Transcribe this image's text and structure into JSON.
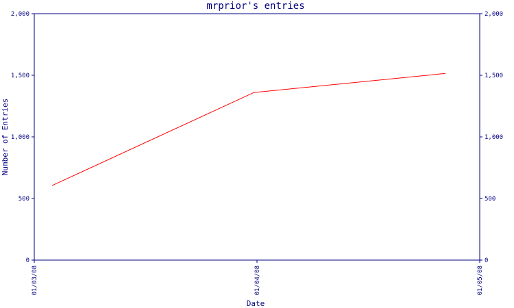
{
  "chart_data": {
    "type": "line",
    "title": "mrprior's entries",
    "xlabel": "Date",
    "ylabel": "Number of Entries",
    "x_ticks": [
      "01/03/08",
      "01/04/08",
      "01/05/08"
    ],
    "y_ticks": [
      "0",
      "500",
      "1,000",
      "1,500",
      "2,000"
    ],
    "ylim": [
      0,
      2000
    ],
    "xlim": [
      "01/03/08",
      "01/05/08"
    ],
    "series": [
      {
        "color": "#ff0000",
        "x": [
          "01/03/08 (approx. day 1)",
          "01/04/08",
          "01/05/08 (approx. 3 days before)"
        ],
        "values": [
          605,
          1360,
          1515
        ]
      }
    ],
    "grid": false,
    "frame_color": "#000080"
  }
}
